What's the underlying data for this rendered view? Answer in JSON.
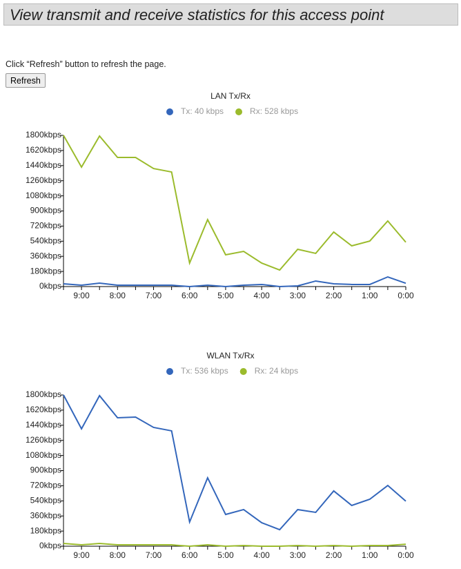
{
  "header": {
    "title": "View transmit and receive statistics for this access point"
  },
  "instructions": "Click “Refresh” button to refresh the page.",
  "button": "Refresh",
  "chart_data": [
    {
      "type": "line",
      "title": "LAN Tx/Rx",
      "categories": [
        null,
        "9:00",
        null,
        "8:00",
        null,
        "7:00",
        null,
        "6:00",
        null,
        "5:00",
        null,
        "4:00",
        null,
        "3:00",
        null,
        "2:00",
        null,
        "1:00",
        null,
        "0:00"
      ],
      "ylim": [
        0,
        1800
      ],
      "yticks": [
        {
          "value": 0,
          "label": "0kbps"
        },
        {
          "value": 180,
          "label": "180kbps"
        },
        {
          "value": 360,
          "label": "360kbps"
        },
        {
          "value": 540,
          "label": "540kbps"
        },
        {
          "value": 720,
          "label": "720kbps"
        },
        {
          "value": 900,
          "label": "900kbps"
        },
        {
          "value": 1080,
          "label": "1080kbps"
        },
        {
          "value": 1260,
          "label": "1260kbps"
        },
        {
          "value": 1440,
          "label": "1440kbps"
        },
        {
          "value": 1620,
          "label": "1620kbps"
        },
        {
          "value": 1800,
          "label": "1800kbps"
        }
      ],
      "series": [
        {
          "name": "Tx: 40 kbps",
          "color": "#3366bb",
          "values": [
            33,
            16,
            41,
            16,
            16,
            16,
            16,
            0,
            16,
            0,
            16,
            25,
            0,
            8,
            66,
            33,
            25,
            25,
            115,
            40
          ]
        },
        {
          "name": "Rx: 528 kbps",
          "color": "#9bbb2c",
          "values": [
            1800,
            1422,
            1792,
            1537,
            1537,
            1405,
            1364,
            280,
            797,
            378,
            419,
            280,
            197,
            444,
            395,
            649,
            485,
            542,
            781,
            528
          ]
        }
      ]
    },
    {
      "type": "line",
      "title": "WLAN Tx/Rx",
      "categories": [
        null,
        "9:00",
        null,
        "8:00",
        null,
        "7:00",
        null,
        "6:00",
        null,
        "5:00",
        null,
        "4:00",
        null,
        "3:00",
        null,
        "2:00",
        null,
        "1:00",
        null,
        "0:00"
      ],
      "ylim": [
        0,
        1800
      ],
      "yticks": [
        {
          "value": 0,
          "label": "0kbps"
        },
        {
          "value": 180,
          "label": "180kbps"
        },
        {
          "value": 360,
          "label": "360kbps"
        },
        {
          "value": 540,
          "label": "540kbps"
        },
        {
          "value": 720,
          "label": "720kbps"
        },
        {
          "value": 900,
          "label": "900kbps"
        },
        {
          "value": 1080,
          "label": "1080kbps"
        },
        {
          "value": 1260,
          "label": "1260kbps"
        },
        {
          "value": 1440,
          "label": "1440kbps"
        },
        {
          "value": 1620,
          "label": "1620kbps"
        },
        {
          "value": 1800,
          "label": "1800kbps"
        }
      ],
      "series": [
        {
          "name": "Tx: 536 kbps",
          "color": "#3366bb",
          "values": [
            1800,
            1397,
            1792,
            1529,
            1537,
            1414,
            1373,
            288,
            814,
            378,
            436,
            280,
            197,
            436,
            403,
            658,
            485,
            559,
            723,
            536
          ]
        },
        {
          "name": "Rx: 24 kbps",
          "color": "#9bbb2c",
          "values": [
            33,
            16,
            33,
            16,
            16,
            16,
            16,
            0,
            16,
            0,
            8,
            0,
            0,
            8,
            0,
            8,
            0,
            8,
            8,
            24
          ]
        }
      ]
    }
  ]
}
